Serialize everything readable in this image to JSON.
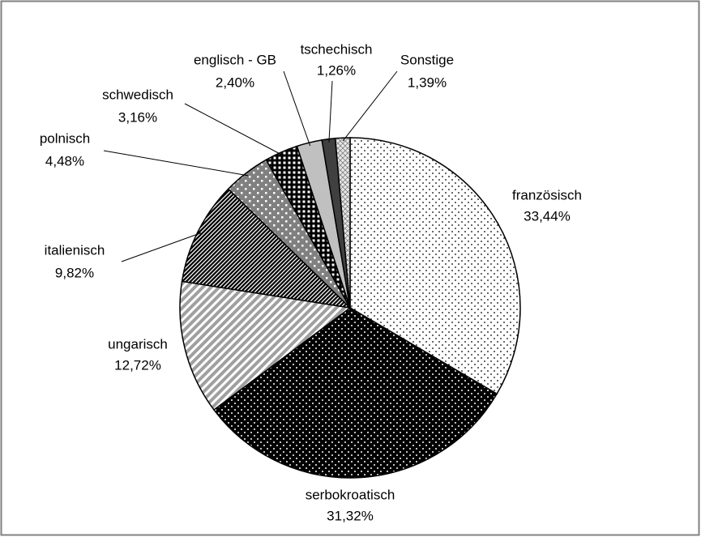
{
  "chart_data": {
    "type": "pie",
    "categories": [
      "französisch",
      "serbokroatisch",
      "ungarisch",
      "italienisch",
      "polnisch",
      "schwedisch",
      "englisch - GB",
      "tschechisch",
      "Sonstige"
    ],
    "values": [
      33.44,
      31.32,
      12.72,
      9.82,
      4.48,
      3.16,
      2.4,
      1.26,
      1.39
    ],
    "value_labels": [
      "33,44%",
      "31,32%",
      "12,72%",
      "9,82%",
      "4,48%",
      "3,16%",
      "2,40%",
      "1,26%",
      "1,39%"
    ],
    "colors": [
      "#ffffff",
      "#000000",
      "#a0a0a0",
      "#000000",
      "#808080",
      "#000000",
      "#c0c0c0",
      "#404040",
      "#e8e8e8"
    ]
  }
}
